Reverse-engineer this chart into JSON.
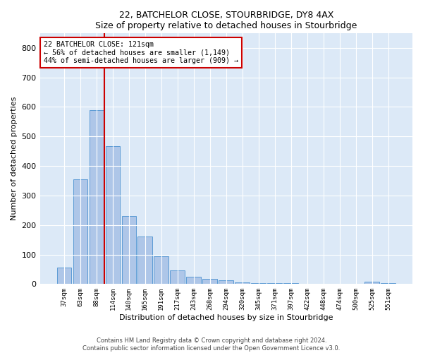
{
  "title1": "22, BATCHELOR CLOSE, STOURBRIDGE, DY8 4AX",
  "title2": "Size of property relative to detached houses in Stourbridge",
  "xlabel": "Distribution of detached houses by size in Stourbridge",
  "ylabel": "Number of detached properties",
  "categories": [
    "37sqm",
    "63sqm",
    "88sqm",
    "114sqm",
    "140sqm",
    "165sqm",
    "191sqm",
    "217sqm",
    "243sqm",
    "268sqm",
    "294sqm",
    "320sqm",
    "345sqm",
    "371sqm",
    "397sqm",
    "422sqm",
    "448sqm",
    "474sqm",
    "500sqm",
    "525sqm",
    "551sqm"
  ],
  "values": [
    57,
    355,
    588,
    467,
    230,
    160,
    95,
    47,
    25,
    18,
    13,
    5,
    2,
    2,
    2,
    1,
    1,
    0,
    0,
    8,
    3
  ],
  "bar_color": "#aec6e8",
  "bar_edge_color": "#5b9bd5",
  "vline_color": "#cc0000",
  "annotation_title": "22 BATCHELOR CLOSE: 121sqm",
  "annotation_line1": "← 56% of detached houses are smaller (1,149)",
  "annotation_line2": "44% of semi-detached houses are larger (909) →",
  "annotation_box_color": "#cc0000",
  "ylim": [
    0,
    850
  ],
  "yticks": [
    0,
    100,
    200,
    300,
    400,
    500,
    600,
    700,
    800
  ],
  "background_color": "#dce9f7",
  "footnote1": "Contains HM Land Registry data © Crown copyright and database right 2024.",
  "footnote2": "Contains public sector information licensed under the Open Government Licence v3.0."
}
